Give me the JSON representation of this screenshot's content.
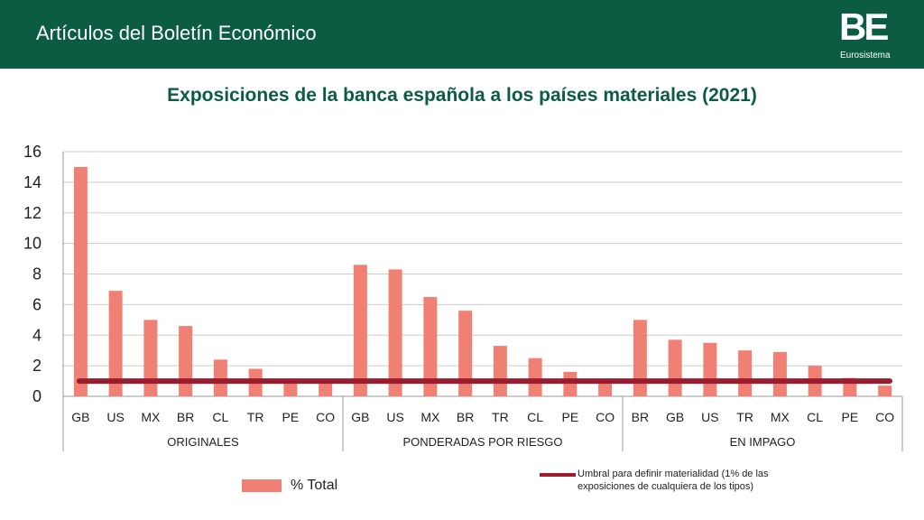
{
  "header": {
    "title": "Artículos del Boletín Económico"
  },
  "logo": {
    "mark": "BE",
    "subtitle": "Eurosistema"
  },
  "colors": {
    "header_bg": "#0c5c43",
    "bar": "#f08074",
    "threshold": "#9b1c2e",
    "title": "#0c5c43"
  },
  "chart_data": {
    "type": "bar",
    "title": "Exposiciones de la banca española a los países materiales (2021)",
    "ylim": [
      0,
      16
    ],
    "yticks": [
      0,
      2,
      4,
      6,
      8,
      10,
      12,
      14,
      16
    ],
    "grid": true,
    "groups": [
      {
        "label": "ORIGINALES",
        "categories": [
          "GB",
          "US",
          "MX",
          "BR",
          "CL",
          "TR",
          "PE",
          "CO"
        ],
        "values": [
          15.0,
          6.9,
          5.0,
          4.6,
          2.4,
          1.8,
          1.0,
          0.9
        ]
      },
      {
        "label": "PONDERADAS POR RIESGO",
        "categories": [
          "GB",
          "US",
          "MX",
          "BR",
          "TR",
          "CL",
          "PE",
          "CO"
        ],
        "values": [
          8.6,
          8.3,
          6.5,
          5.6,
          3.3,
          2.5,
          1.6,
          1.1
        ]
      },
      {
        "label": "EN IMPAGO",
        "categories": [
          "BR",
          "GB",
          "US",
          "TR",
          "MX",
          "CL",
          "PE",
          "CO"
        ],
        "values": [
          5.0,
          3.7,
          3.5,
          3.0,
          2.9,
          2.0,
          1.2,
          0.7
        ]
      }
    ],
    "threshold": {
      "value": 1,
      "label": "Umbral para definir materialidad (1% de las exposiciones de cualquiera de los tipos)"
    },
    "legend": {
      "series_label": "% Total",
      "placement": "bottom"
    }
  }
}
